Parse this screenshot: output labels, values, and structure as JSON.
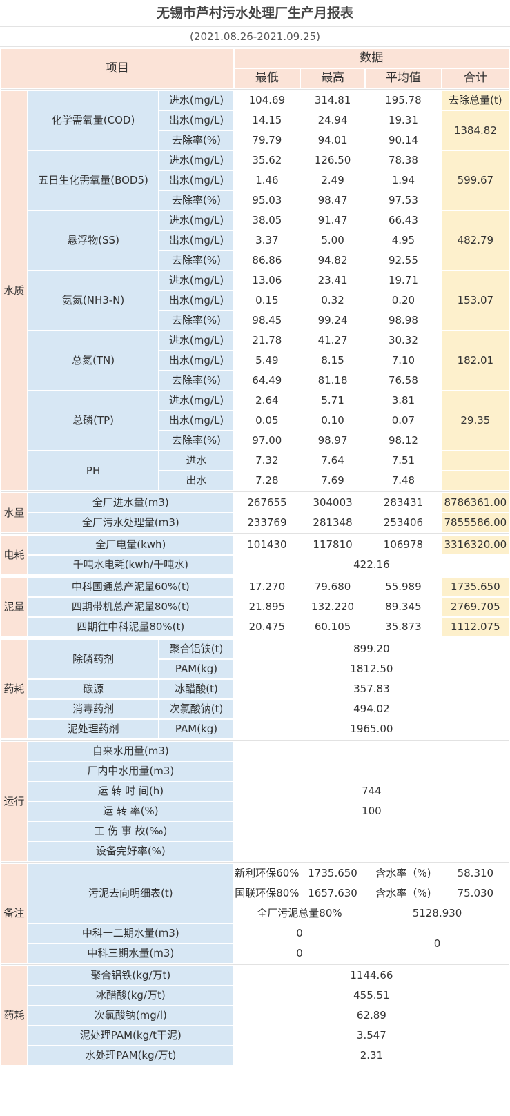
{
  "title": "无锡市芦村污水处理厂生产月报表",
  "period": "(2021.08.26-2021.09.25)",
  "header": {
    "item": "项目",
    "data": "数据",
    "min": "最低",
    "max": "最高",
    "avg": "平均值",
    "total": "合计",
    "removal_total": "去除总量(t)"
  },
  "labels": {
    "in": "进水(mg/L)",
    "out": "出水(mg/L)",
    "rate": "去除率(%)",
    "ph_in": "进水",
    "ph_out": "出水"
  },
  "water_quality": {
    "group": "水质",
    "params": [
      {
        "name": "化学需氧量(COD)",
        "in": [
          "104.69",
          "314.81",
          "195.78"
        ],
        "out": [
          "14.15",
          "24.94",
          "19.31"
        ],
        "rate": [
          "79.79",
          "94.01",
          "90.14"
        ],
        "total": "1384.82"
      },
      {
        "name": "五日生化需氧量(BOD5)",
        "in": [
          "35.62",
          "126.50",
          "78.38"
        ],
        "out": [
          "1.46",
          "2.49",
          "1.94"
        ],
        "rate": [
          "95.03",
          "98.47",
          "97.53"
        ],
        "total": "599.67"
      },
      {
        "name": "悬浮物(SS)",
        "in": [
          "38.05",
          "91.47",
          "66.43"
        ],
        "out": [
          "3.37",
          "5.00",
          "4.95"
        ],
        "rate": [
          "86.86",
          "94.82",
          "92.55"
        ],
        "total": "482.79"
      },
      {
        "name": "氨氮(NH3-N)",
        "in": [
          "13.06",
          "23.41",
          "19.71"
        ],
        "out": [
          "0.15",
          "0.32",
          "0.20"
        ],
        "rate": [
          "98.45",
          "99.24",
          "98.98"
        ],
        "total": "153.07"
      },
      {
        "name": "总氮(TN)",
        "in": [
          "21.78",
          "41.27",
          "30.32"
        ],
        "out": [
          "5.49",
          "8.15",
          "7.10"
        ],
        "rate": [
          "64.49",
          "81.18",
          "76.58"
        ],
        "total": "182.01"
      },
      {
        "name": "总磷(TP)",
        "in": [
          "2.64",
          "5.71",
          "3.81"
        ],
        "out": [
          "0.05",
          "0.10",
          "0.07"
        ],
        "rate": [
          "97.00",
          "98.97",
          "98.12"
        ],
        "total": "29.35"
      }
    ],
    "ph": {
      "name": "PH",
      "in": [
        "7.32",
        "7.64",
        "7.51"
      ],
      "out": [
        "7.28",
        "7.69",
        "7.48"
      ]
    }
  },
  "water_volume": {
    "group": "水量",
    "rows": [
      {
        "name": "全厂进水量(m3)",
        "vals": [
          "267655",
          "304003",
          "283431"
        ],
        "total": "8786361.00"
      },
      {
        "name": "全厂污水处理量(m3)",
        "vals": [
          "233769",
          "281348",
          "253406"
        ],
        "total": "7855586.00"
      }
    ]
  },
  "power": {
    "group": "电耗",
    "total_row": {
      "name": "全厂电量(kwh)",
      "vals": [
        "101430",
        "117810",
        "106978"
      ],
      "total": "3316320.00"
    },
    "per_ton": {
      "name": "千吨水电耗(kwh/千吨水)",
      "value": "422.16"
    }
  },
  "sludge": {
    "group": "泥量",
    "rows": [
      {
        "name": "中科国通总产泥量60%(t)",
        "vals": [
          "17.270",
          "79.680",
          "55.989"
        ],
        "total": "1735.650"
      },
      {
        "name": "四期带机总产泥量80%(t)",
        "vals": [
          "21.895",
          "132.220",
          "89.345"
        ],
        "total": "2769.705"
      },
      {
        "name": "四期往中科泥量80%(t)",
        "vals": [
          "20.475",
          "60.105",
          "35.873"
        ],
        "total": "1112.075"
      }
    ]
  },
  "chemicals": {
    "group": "药耗",
    "phos_group": "除磷药剂",
    "pac": {
      "name": "聚合铝铁(t)",
      "value": "899.20"
    },
    "pam1": {
      "name": "PAM(kg)",
      "value": "1812.50"
    },
    "carbon": {
      "group": "碳源",
      "name": "冰醋酸(t)",
      "value": "357.83"
    },
    "disinfect": {
      "group": "消毒药剂",
      "name": "次氯酸钠(t)",
      "value": "494.02"
    },
    "sludge_chem": {
      "group": "泥处理药剂",
      "name": "PAM(kg)",
      "value": "1965.00"
    }
  },
  "operation": {
    "group": "运行",
    "rows": [
      {
        "name": "自来水用量(m3)",
        "value": ""
      },
      {
        "name": "厂内中水用量(m3)",
        "value": ""
      },
      {
        "name": "运 转 时 间(h)",
        "value": "744"
      },
      {
        "name": "运 转 率(%)",
        "value": "100"
      },
      {
        "name": "工 伤 事 故(‰)",
        "value": ""
      },
      {
        "name": "设备完好率(%)",
        "value": ""
      }
    ]
  },
  "remarks": {
    "group": "备注",
    "sludge_dest": "污泥去向明细表(t)",
    "xinli": {
      "name": "新利环保60%",
      "value": "1735.650",
      "moisture_label": "含水率（%)",
      "moisture": "58.310"
    },
    "guolian": {
      "name": "国联环保80%",
      "value": "1657.630",
      "moisture_label": "含水率（%)",
      "moisture": "75.030"
    },
    "plant_total": {
      "name": "全厂污泥总量80%",
      "value": "5128.930"
    },
    "zk12": {
      "name": "中科一二期水量(m3)",
      "value": "0"
    },
    "zk3": {
      "name": "中科三期水量(m3)",
      "value": "0"
    },
    "zk_total": "0"
  },
  "unit_chemicals": {
    "group": "药耗",
    "rows": [
      {
        "name": "聚合铝铁(kg/万t)",
        "value": "1144.66"
      },
      {
        "name": "冰醋酸(kg/万t)",
        "value": "455.51"
      },
      {
        "name": "次氯酸钠(mg/l)",
        "value": "62.89"
      },
      {
        "name": "泥处理PAM(kg/t干泥)",
        "value": "3.547"
      },
      {
        "name": "水处理PAM(kg/万t)",
        "value": "2.31"
      }
    ]
  }
}
